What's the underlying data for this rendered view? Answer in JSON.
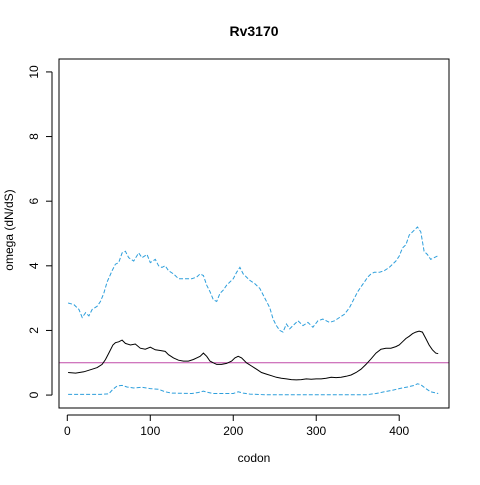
{
  "chart_data": {
    "type": "line",
    "title": "Rv3170",
    "xlabel": "codon",
    "ylabel": "omega (dN/dS)",
    "xlim": [
      -10,
      460
    ],
    "ylim": [
      -0.4,
      10.4
    ],
    "x_ticks": [
      0,
      100,
      200,
      300,
      400
    ],
    "y_ticks": [
      0,
      2,
      4,
      6,
      8,
      10
    ],
    "grid": false,
    "legend": "none",
    "reference_line": {
      "y": 1,
      "color": "#c04aa8"
    },
    "series": [
      {
        "role": "upper bound",
        "color": "#2e9fdc",
        "style": "dashed",
        "points": [
          [
            1,
            2.85
          ],
          [
            8,
            2.8
          ],
          [
            14,
            2.65
          ],
          [
            18,
            2.4
          ],
          [
            22,
            2.55
          ],
          [
            26,
            2.45
          ],
          [
            30,
            2.65
          ],
          [
            36,
            2.75
          ],
          [
            40,
            2.9
          ],
          [
            44,
            3.15
          ],
          [
            48,
            3.5
          ],
          [
            54,
            3.85
          ],
          [
            58,
            4.05
          ],
          [
            62,
            4.1
          ],
          [
            66,
            4.4
          ],
          [
            70,
            4.45
          ],
          [
            74,
            4.25
          ],
          [
            80,
            4.15
          ],
          [
            86,
            4.4
          ],
          [
            90,
            4.25
          ],
          [
            96,
            4.35
          ],
          [
            100,
            4.1
          ],
          [
            106,
            4.2
          ],
          [
            110,
            4.0
          ],
          [
            114,
            3.95
          ],
          [
            118,
            4.0
          ],
          [
            122,
            3.85
          ],
          [
            128,
            3.75
          ],
          [
            134,
            3.6
          ],
          [
            142,
            3.6
          ],
          [
            150,
            3.6
          ],
          [
            156,
            3.65
          ],
          [
            160,
            3.75
          ],
          [
            164,
            3.7
          ],
          [
            168,
            3.4
          ],
          [
            172,
            3.2
          ],
          [
            176,
            2.95
          ],
          [
            180,
            2.9
          ],
          [
            184,
            3.15
          ],
          [
            188,
            3.25
          ],
          [
            192,
            3.4
          ],
          [
            196,
            3.5
          ],
          [
            200,
            3.6
          ],
          [
            204,
            3.8
          ],
          [
            208,
            3.95
          ],
          [
            212,
            3.75
          ],
          [
            216,
            3.65
          ],
          [
            220,
            3.55
          ],
          [
            226,
            3.45
          ],
          [
            232,
            3.3
          ],
          [
            238,
            3.0
          ],
          [
            244,
            2.7
          ],
          [
            248,
            2.35
          ],
          [
            252,
            2.15
          ],
          [
            256,
            2.0
          ],
          [
            260,
            1.95
          ],
          [
            264,
            2.2
          ],
          [
            268,
            2.05
          ],
          [
            272,
            2.15
          ],
          [
            278,
            2.3
          ],
          [
            284,
            2.15
          ],
          [
            290,
            2.25
          ],
          [
            296,
            2.1
          ],
          [
            302,
            2.3
          ],
          [
            308,
            2.35
          ],
          [
            316,
            2.25
          ],
          [
            322,
            2.3
          ],
          [
            328,
            2.4
          ],
          [
            334,
            2.5
          ],
          [
            340,
            2.7
          ],
          [
            346,
            3.0
          ],
          [
            350,
            3.2
          ],
          [
            354,
            3.35
          ],
          [
            358,
            3.5
          ],
          [
            362,
            3.65
          ],
          [
            366,
            3.75
          ],
          [
            370,
            3.8
          ],
          [
            376,
            3.8
          ],
          [
            382,
            3.85
          ],
          [
            388,
            3.95
          ],
          [
            392,
            4.05
          ],
          [
            396,
            4.15
          ],
          [
            400,
            4.3
          ],
          [
            404,
            4.55
          ],
          [
            408,
            4.65
          ],
          [
            412,
            4.95
          ],
          [
            418,
            5.1
          ],
          [
            422,
            5.2
          ],
          [
            426,
            5.05
          ],
          [
            430,
            4.45
          ],
          [
            434,
            4.35
          ],
          [
            438,
            4.2
          ],
          [
            442,
            4.25
          ],
          [
            446,
            4.3
          ]
        ]
      },
      {
        "role": "estimate",
        "color": "#000000",
        "style": "solid",
        "points": [
          [
            1,
            0.7
          ],
          [
            10,
            0.68
          ],
          [
            20,
            0.72
          ],
          [
            30,
            0.8
          ],
          [
            36,
            0.85
          ],
          [
            42,
            0.95
          ],
          [
            46,
            1.1
          ],
          [
            50,
            1.3
          ],
          [
            55,
            1.55
          ],
          [
            58,
            1.62
          ],
          [
            62,
            1.65
          ],
          [
            66,
            1.7
          ],
          [
            70,
            1.6
          ],
          [
            76,
            1.55
          ],
          [
            82,
            1.58
          ],
          [
            88,
            1.45
          ],
          [
            94,
            1.42
          ],
          [
            100,
            1.48
          ],
          [
            106,
            1.4
          ],
          [
            112,
            1.38
          ],
          [
            118,
            1.35
          ],
          [
            122,
            1.25
          ],
          [
            128,
            1.15
          ],
          [
            134,
            1.08
          ],
          [
            140,
            1.05
          ],
          [
            146,
            1.05
          ],
          [
            152,
            1.1
          ],
          [
            156,
            1.15
          ],
          [
            160,
            1.2
          ],
          [
            164,
            1.3
          ],
          [
            168,
            1.2
          ],
          [
            172,
            1.05
          ],
          [
            176,
            1.0
          ],
          [
            180,
            0.95
          ],
          [
            186,
            0.95
          ],
          [
            192,
            0.98
          ],
          [
            198,
            1.05
          ],
          [
            202,
            1.15
          ],
          [
            206,
            1.2
          ],
          [
            210,
            1.15
          ],
          [
            216,
            1.0
          ],
          [
            222,
            0.9
          ],
          [
            228,
            0.8
          ],
          [
            234,
            0.7
          ],
          [
            240,
            0.65
          ],
          [
            246,
            0.6
          ],
          [
            252,
            0.55
          ],
          [
            258,
            0.52
          ],
          [
            264,
            0.5
          ],
          [
            270,
            0.48
          ],
          [
            276,
            0.47
          ],
          [
            282,
            0.48
          ],
          [
            288,
            0.5
          ],
          [
            294,
            0.49
          ],
          [
            300,
            0.5
          ],
          [
            306,
            0.5
          ],
          [
            312,
            0.52
          ],
          [
            318,
            0.55
          ],
          [
            324,
            0.54
          ],
          [
            330,
            0.55
          ],
          [
            336,
            0.58
          ],
          [
            342,
            0.62
          ],
          [
            348,
            0.7
          ],
          [
            354,
            0.8
          ],
          [
            360,
            0.95
          ],
          [
            366,
            1.12
          ],
          [
            372,
            1.3
          ],
          [
            378,
            1.42
          ],
          [
            384,
            1.45
          ],
          [
            390,
            1.45
          ],
          [
            396,
            1.5
          ],
          [
            400,
            1.55
          ],
          [
            404,
            1.65
          ],
          [
            408,
            1.75
          ],
          [
            412,
            1.82
          ],
          [
            416,
            1.9
          ],
          [
            420,
            1.95
          ],
          [
            424,
            1.98
          ],
          [
            428,
            1.95
          ],
          [
            432,
            1.75
          ],
          [
            436,
            1.55
          ],
          [
            440,
            1.4
          ],
          [
            444,
            1.3
          ],
          [
            447,
            1.28
          ]
        ]
      },
      {
        "role": "lower bound",
        "color": "#2e9fdc",
        "style": "dashed",
        "points": [
          [
            1,
            0.02
          ],
          [
            40,
            0.02
          ],
          [
            50,
            0.04
          ],
          [
            55,
            0.18
          ],
          [
            60,
            0.28
          ],
          [
            66,
            0.3
          ],
          [
            72,
            0.25
          ],
          [
            80,
            0.22
          ],
          [
            90,
            0.24
          ],
          [
            100,
            0.2
          ],
          [
            110,
            0.18
          ],
          [
            118,
            0.1
          ],
          [
            126,
            0.06
          ],
          [
            150,
            0.05
          ],
          [
            158,
            0.08
          ],
          [
            164,
            0.12
          ],
          [
            170,
            0.08
          ],
          [
            176,
            0.05
          ],
          [
            200,
            0.05
          ],
          [
            206,
            0.1
          ],
          [
            212,
            0.06
          ],
          [
            220,
            0.03
          ],
          [
            240,
            0.01
          ],
          [
            360,
            0.01
          ],
          [
            372,
            0.05
          ],
          [
            382,
            0.1
          ],
          [
            392,
            0.15
          ],
          [
            400,
            0.2
          ],
          [
            410,
            0.25
          ],
          [
            418,
            0.3
          ],
          [
            422,
            0.35
          ],
          [
            426,
            0.32
          ],
          [
            432,
            0.2
          ],
          [
            438,
            0.1
          ],
          [
            447,
            0.05
          ]
        ]
      }
    ]
  }
}
